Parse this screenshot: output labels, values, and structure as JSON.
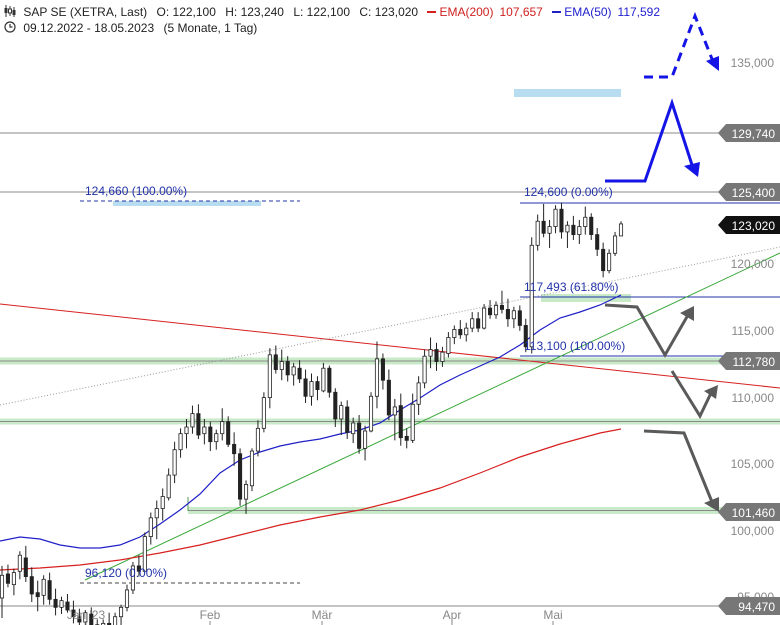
{
  "header": {
    "icon": "candlestick-icon",
    "title": "SAP SE (XETRA, Last)",
    "open": "O: 122,100",
    "high": "H: 123,240",
    "low": "L: 122,100",
    "close": "C: 123,020",
    "ema200_label": "EMA(200)",
    "ema200_value": "107,657",
    "ema50_label": "EMA(50)",
    "ema50_value": "117,592",
    "clock_icon": "clock-icon",
    "period": "09.12.2022 - 18.05.2023",
    "interval": "(5 Monate, 1 Tag)"
  },
  "colors": {
    "up": "#ffffff",
    "down": "#222222",
    "ema200": "#d82020",
    "ema50": "#2020c8",
    "support_zone": "#c8eac8",
    "resistance_zone": "#b8dcf0",
    "arrow_blue": "#1414e6",
    "arrow_gray": "#5a5a5a",
    "fib": "#2233aa"
  },
  "chart_data": {
    "type": "candlestick",
    "ylim": [
      94000,
      138000
    ],
    "y_ticks": [
      "135,000",
      "120,000",
      "115,000",
      "110,000",
      "105,000",
      "100,000",
      "95,000"
    ],
    "x_ticks": [
      "Jan '23",
      "Feb",
      "Mär",
      "Apr",
      "Mai"
    ],
    "price_labels": [
      {
        "text": "129,740",
        "kind": "gray"
      },
      {
        "text": "125,400",
        "kind": "gray"
      },
      {
        "text": "123,020",
        "kind": "black"
      },
      {
        "text": "112,780",
        "kind": "gray"
      },
      {
        "text": "101,460",
        "kind": "gray"
      },
      {
        "text": "94,470",
        "kind": "gray"
      }
    ],
    "annotations": [
      "124,660 (100.00%)",
      "124,600 (0.00%)",
      "117,493 (61.80%)",
      "113,100 (100.00%)",
      "96,120 (0.00%)"
    ],
    "candles": [
      [
        95,
        97.4,
        93.5,
        96.7
      ],
      [
        96.8,
        97.5,
        95.8,
        96.1
      ],
      [
        96,
        97.2,
        95.2,
        96.9
      ],
      [
        97,
        98.5,
        96.4,
        98.2
      ],
      [
        98,
        98.9,
        96.2,
        96.6
      ],
      [
        96.6,
        97.3,
        94.7,
        95.3
      ],
      [
        95.4,
        96.3,
        94,
        95.1
      ],
      [
        95.2,
        96.7,
        94.5,
        96.4
      ],
      [
        96.3,
        96.9,
        94.5,
        94.9
      ],
      [
        94.9,
        95.7,
        93.7,
        94.3
      ],
      [
        94.3,
        95.1,
        93.8,
        94.8
      ],
      [
        94.7,
        95.3,
        93.9,
        94.1
      ],
      [
        94.1,
        94.8,
        93.1,
        93.6
      ],
      [
        93.6,
        94.2,
        92.9,
        93.2
      ],
      [
        93.2,
        94.1,
        92.8,
        93.9
      ],
      [
        93.8,
        94.3,
        92.5,
        93
      ],
      [
        93,
        93.4,
        91.8,
        92
      ],
      [
        92,
        93.4,
        91.2,
        93.1
      ],
      [
        93.1,
        93.9,
        91.7,
        92.1
      ],
      [
        92.1,
        93.9,
        92,
        93.6
      ],
      [
        93.6,
        94.5,
        92.5,
        94.3
      ],
      [
        94.3,
        96,
        94,
        95.6
      ],
      [
        95.6,
        97.7,
        95.3,
        97.4
      ],
      [
        97.4,
        98.2,
        96.6,
        97
      ],
      [
        97,
        99.9,
        97,
        99.6
      ],
      [
        99.6,
        101.4,
        99,
        101
      ],
      [
        101,
        102.3,
        99.4,
        101.7
      ],
      [
        101.7,
        103.2,
        100.8,
        102.6
      ],
      [
        102.5,
        104.7,
        102.3,
        104.2
      ],
      [
        104.2,
        106.7,
        103.6,
        106.1
      ],
      [
        106.1,
        107.7,
        105.5,
        107.3
      ],
      [
        107.3,
        108.4,
        106.2,
        107.8
      ],
      [
        107.8,
        109.4,
        107.3,
        108.8
      ],
      [
        108.8,
        109.5,
        106.9,
        107.2
      ],
      [
        107.3,
        108.4,
        106.5,
        107.8
      ],
      [
        107.8,
        108.2,
        106,
        106.7
      ],
      [
        106.7,
        107.6,
        106.1,
        107.3
      ],
      [
        107.3,
        109.2,
        106.8,
        108.2
      ],
      [
        108.2,
        108.6,
        106.3,
        106.5
      ],
      [
        106.5,
        107.4,
        104.9,
        105.8
      ],
      [
        105.8,
        106.2,
        101.9,
        102.4
      ],
      [
        102.4,
        103.8,
        101.3,
        103.5
      ],
      [
        103.4,
        106.2,
        103,
        106
      ],
      [
        106,
        108.3,
        105.6,
        107.7
      ],
      [
        107.7,
        110.4,
        107.4,
        110
      ],
      [
        110,
        113.7,
        109.2,
        113.2
      ],
      [
        113.2,
        113.9,
        111.8,
        112.1
      ],
      [
        112.1,
        113.6,
        111.3,
        112.7
      ],
      [
        112.7,
        113.1,
        111.2,
        111.7
      ],
      [
        111.7,
        112.6,
        110.9,
        112.3
      ],
      [
        112.2,
        112.8,
        111.1,
        111.4
      ],
      [
        111.4,
        112.1,
        109.6,
        110.1
      ],
      [
        110.1,
        111.8,
        109.4,
        111.2
      ],
      [
        111.2,
        111.6,
        109.8,
        110.6
      ],
      [
        110.5,
        112.6,
        110.4,
        112.2
      ],
      [
        112.2,
        112.4,
        110,
        110.4
      ],
      [
        110.4,
        110.7,
        107.8,
        108.4
      ],
      [
        108.4,
        109.7,
        107.2,
        109.4
      ],
      [
        109.3,
        109.8,
        106.9,
        107.4
      ],
      [
        107.3,
        108.5,
        106.6,
        108.1
      ],
      [
        108.1,
        108.7,
        105.8,
        106.2
      ],
      [
        106.2,
        107.9,
        105.3,
        107.5
      ],
      [
        107.5,
        110.4,
        107.4,
        110.1
      ],
      [
        110.1,
        114.2,
        109.2,
        112.9
      ],
      [
        112.9,
        113.3,
        110.6,
        111.3
      ],
      [
        111.3,
        112.1,
        108.3,
        108.7
      ],
      [
        108.7,
        109.9,
        106.8,
        109.3
      ],
      [
        109.4,
        110.3,
        106.4,
        107
      ],
      [
        107.1,
        107.7,
        106.2,
        106.8
      ],
      [
        106.8,
        110.3,
        106.6,
        109.5
      ],
      [
        109.5,
        111.6,
        108.7,
        111.1
      ],
      [
        111.1,
        113.6,
        110.7,
        113.1
      ],
      [
        113.1,
        114.5,
        112.2,
        113.6
      ],
      [
        113.6,
        114.1,
        112,
        112.7
      ],
      [
        112.7,
        113.8,
        112.3,
        113.4
      ],
      [
        113.3,
        114.9,
        113,
        114.5
      ],
      [
        114.5,
        115.4,
        114,
        115.1
      ],
      [
        115.1,
        115.8,
        114.4,
        114.7
      ],
      [
        114.7,
        115.6,
        114.2,
        115.2
      ],
      [
        115.2,
        116.4,
        114.9,
        115.9
      ],
      [
        115.9,
        116.4,
        114.9,
        115.2
      ],
      [
        115.2,
        117,
        115.1,
        116.7
      ],
      [
        116.7,
        117.3,
        115.9,
        116.2
      ],
      [
        116.2,
        117.2,
        115.9,
        116.9
      ],
      [
        116.9,
        118,
        116.3,
        116.6
      ],
      [
        116.6,
        117.4,
        115.3,
        115.9
      ],
      [
        115.9,
        116.8,
        115.2,
        116.5
      ],
      [
        116.5,
        116.9,
        115,
        115.4
      ],
      [
        115.4,
        115.9,
        113.4,
        113.8
      ],
      [
        113.8,
        122,
        113.3,
        121.4
      ],
      [
        121.4,
        123.7,
        121,
        123.2
      ],
      [
        123.2,
        124.5,
        122,
        122.3
      ],
      [
        122.3,
        123.3,
        121.2,
        122.8
      ],
      [
        122.8,
        124.4,
        122.3,
        124.1
      ],
      [
        124.1,
        124.6,
        121.9,
        122.4
      ],
      [
        122.4,
        123.2,
        121.2,
        122.9
      ],
      [
        122.9,
        123.6,
        121.8,
        122.2
      ],
      [
        122.2,
        123.3,
        121.5,
        122.8
      ],
      [
        122.8,
        124.3,
        122.2,
        123.5
      ],
      [
        123.5,
        123.8,
        121.8,
        122.2
      ],
      [
        122.2,
        122.7,
        120.6,
        121.1
      ],
      [
        121.1,
        121.6,
        119,
        119.5
      ],
      [
        119.5,
        121.1,
        119.3,
        120.8
      ],
      [
        120.8,
        122.4,
        120.6,
        122.1
      ],
      [
        122.1,
        123.2,
        122.1,
        123
      ]
    ]
  }
}
